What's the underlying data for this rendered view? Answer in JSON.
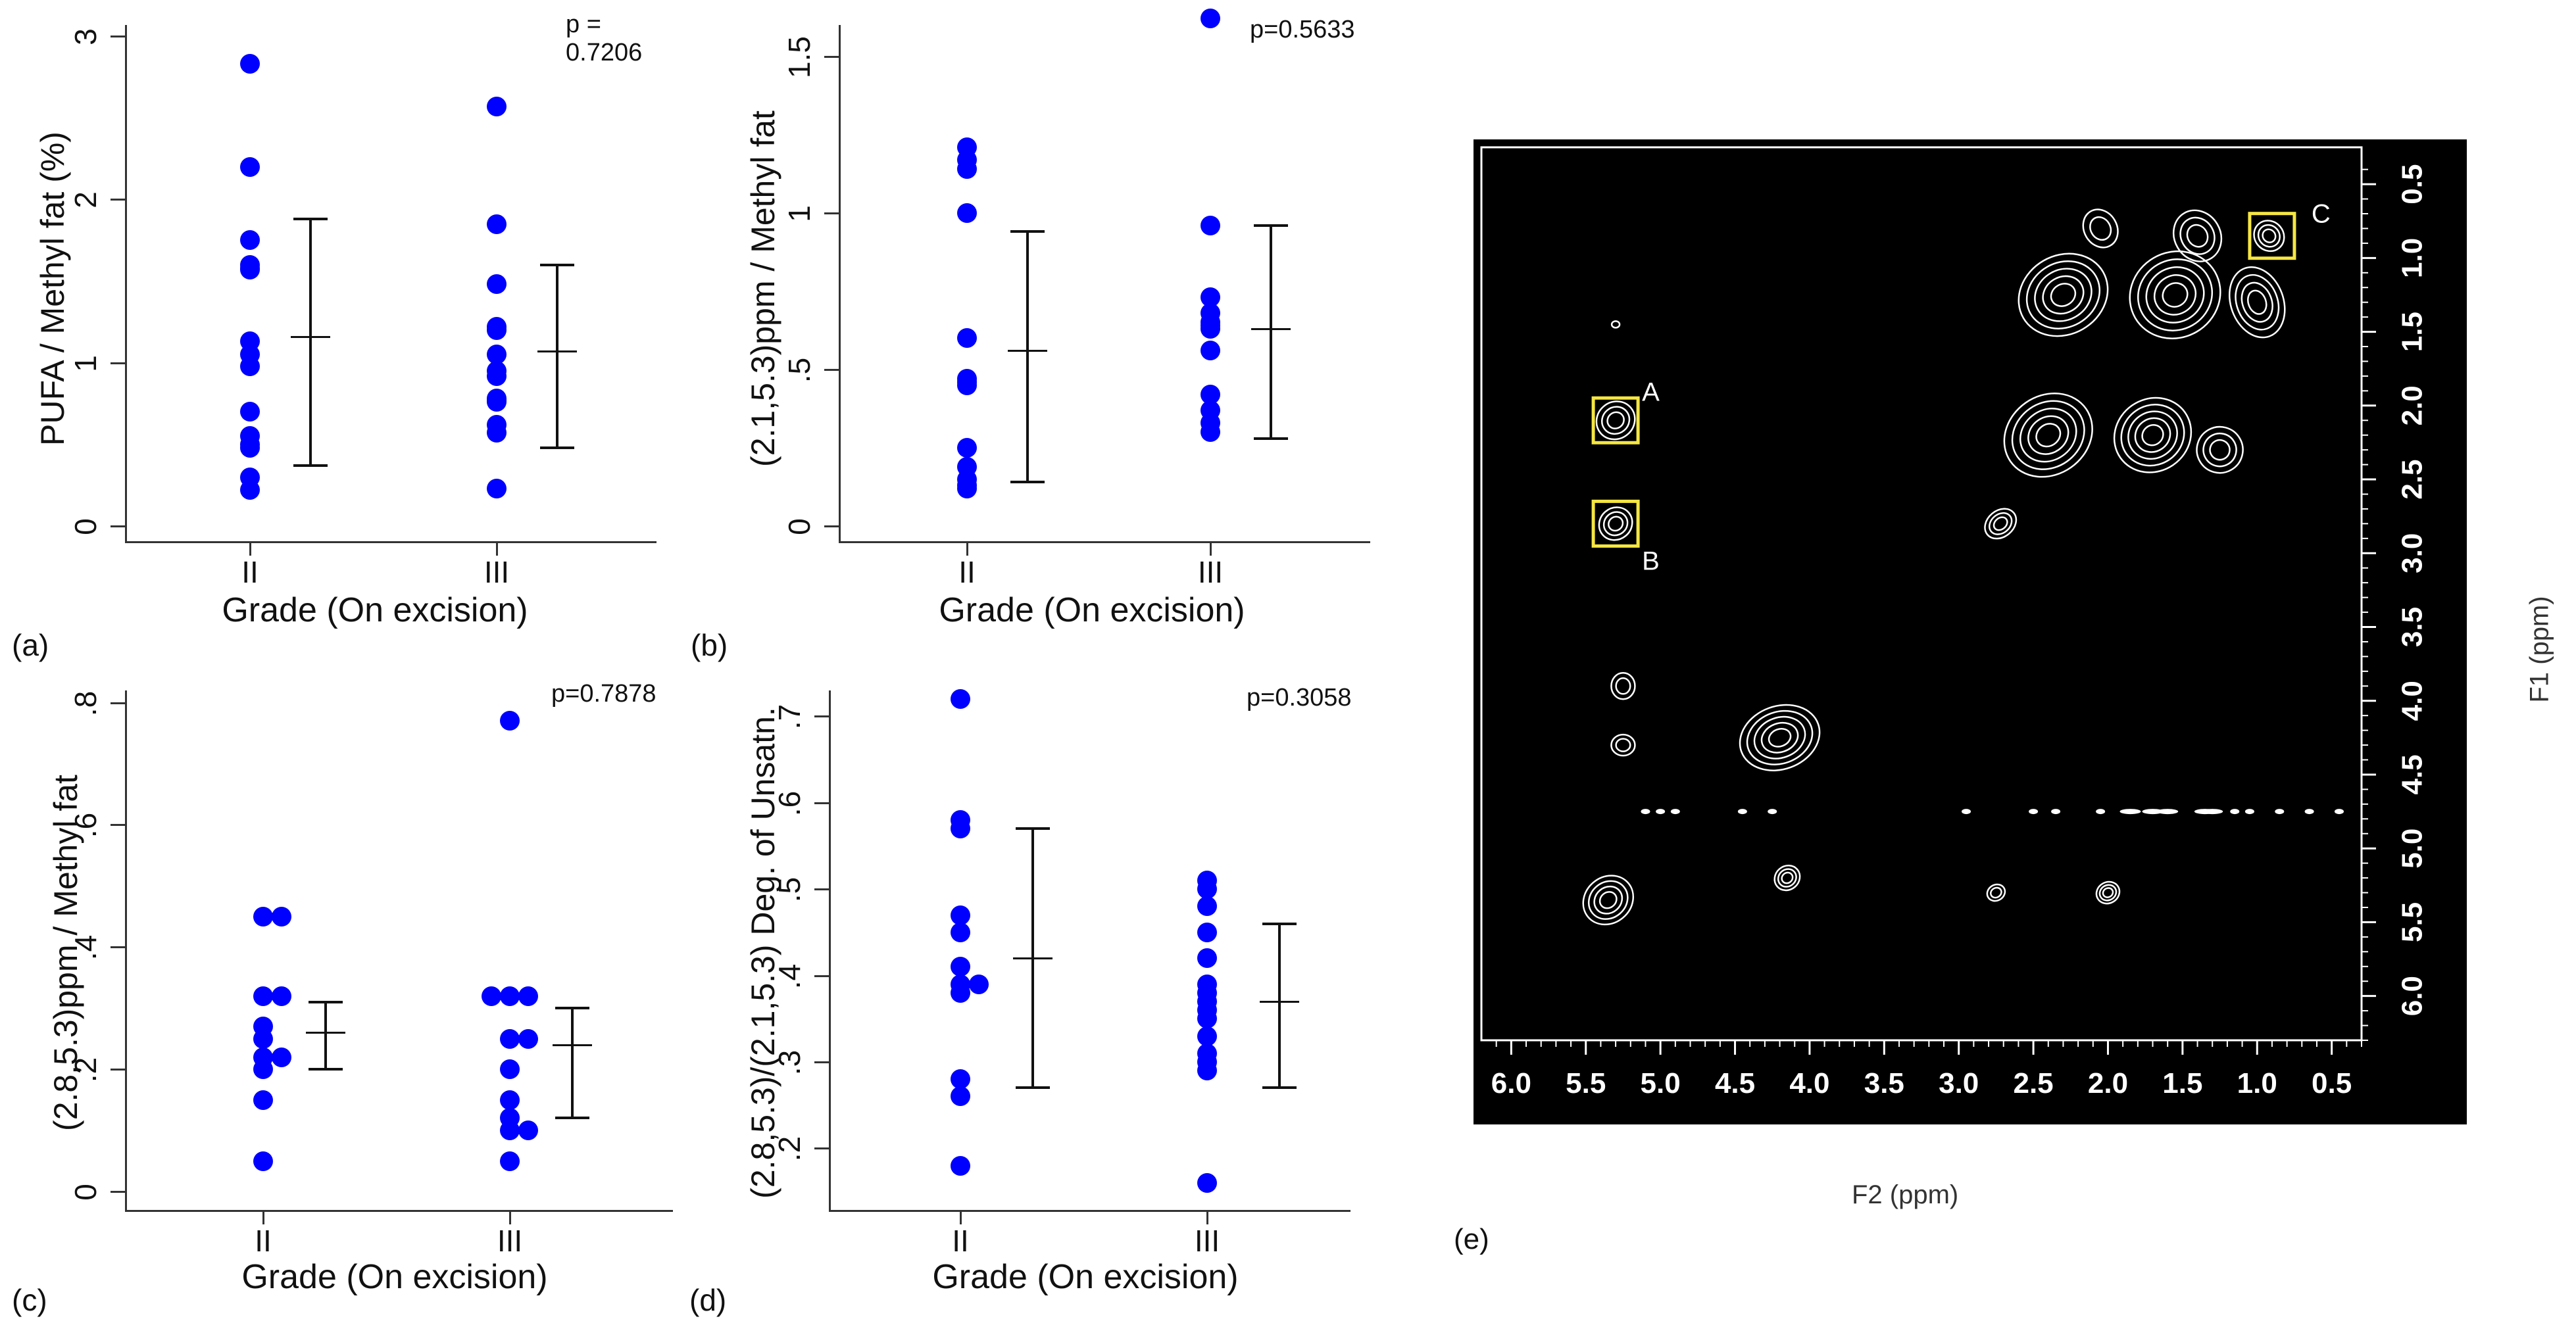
{
  "chart_data": [
    {
      "panel": "(a)",
      "type": "scatter",
      "xlabel": "Grade (On excision)",
      "ylabel": "PUFA / Methyl fat (%)",
      "ylim": [
        0,
        3
      ],
      "yticks": [
        "0",
        "1",
        "2",
        "3"
      ],
      "ytick_values": [
        0,
        1,
        2,
        3
      ],
      "categories": [
        "II",
        "III"
      ],
      "annotation": "p = 0.7206",
      "series": [
        {
          "name": "II",
          "values": [
            2.83,
            2.2,
            1.75,
            1.6,
            1.58,
            1.57,
            1.13,
            1.05,
            0.98,
            0.7,
            0.55,
            0.5,
            0.48,
            0.3,
            0.22
          ]
        },
        {
          "name": "III",
          "values": [
            2.57,
            1.85,
            1.48,
            1.22,
            1.2,
            1.05,
            0.95,
            0.92,
            0.78,
            0.77,
            0.76,
            0.62,
            0.57,
            0.23
          ]
        }
      ],
      "error_bars": [
        {
          "category": "II",
          "low": 0.37,
          "mean": 1.16,
          "high": 1.88
        },
        {
          "category": "III",
          "low": 0.48,
          "mean": 1.07,
          "high": 1.6
        }
      ]
    },
    {
      "panel": "(b)",
      "type": "scatter",
      "xlabel": "Grade (On excision)",
      "ylabel": "(2.1,5.3)ppm / Methyl fat",
      "ylim": [
        0,
        1.6
      ],
      "yticks": [
        "0",
        ".5",
        "1",
        "1.5"
      ],
      "ytick_values": [
        0,
        0.5,
        1,
        1.5
      ],
      "categories": [
        "II",
        "III"
      ],
      "annotation": "p=0.5633",
      "series": [
        {
          "name": "II",
          "values": [
            1.21,
            1.17,
            1.14,
            1.0,
            0.6,
            0.47,
            0.46,
            0.45,
            0.25,
            0.19,
            0.15,
            0.13,
            0.12
          ]
        },
        {
          "name": "III",
          "values": [
            1.62,
            0.96,
            0.73,
            0.68,
            0.65,
            0.64,
            0.63,
            0.56,
            0.42,
            0.37,
            0.33,
            0.3
          ]
        }
      ],
      "error_bars": [
        {
          "category": "II",
          "low": 0.14,
          "mean": 0.56,
          "high": 0.94
        },
        {
          "category": "III",
          "low": 0.28,
          "mean": 0.63,
          "high": 0.96
        }
      ]
    },
    {
      "panel": "(c)",
      "type": "scatter",
      "xlabel": "Grade (On excision)",
      "ylabel": "(2.8,5.3)ppm / Methyl fat",
      "ylim": [
        0,
        0.82
      ],
      "yticks": [
        "0",
        ".2",
        ".4",
        ".6",
        ".8"
      ],
      "ytick_values": [
        0,
        0.2,
        0.4,
        0.6,
        0.8
      ],
      "categories": [
        "II",
        "III"
      ],
      "annotation": "p=0.7878",
      "series": [
        {
          "name": "II",
          "values": [
            0.45,
            0.45,
            0.32,
            0.32,
            0.27,
            0.25,
            0.22,
            0.22,
            0.2,
            0.15,
            0.05
          ]
        },
        {
          "name": "III",
          "values": [
            0.77,
            0.32,
            0.32,
            0.32,
            0.25,
            0.25,
            0.2,
            0.15,
            0.12,
            0.1,
            0.1,
            0.05
          ]
        }
      ],
      "error_bars": [
        {
          "category": "II",
          "low": 0.2,
          "mean": 0.26,
          "high": 0.31
        },
        {
          "category": "III",
          "low": 0.12,
          "mean": 0.24,
          "high": 0.3
        }
      ]
    },
    {
      "panel": "(d)",
      "type": "scatter",
      "xlabel": "Grade (On excision)",
      "ylabel": "(2.8,5.3)/(2.1,5.3) Deg. of Unsatn.",
      "ylim": [
        0.15,
        0.73
      ],
      "yticks": [
        ".2",
        ".3",
        ".4",
        ".5",
        ".6",
        ".7"
      ],
      "ytick_values": [
        0.2,
        0.3,
        0.4,
        0.5,
        0.6,
        0.7
      ],
      "categories": [
        "II",
        "III"
      ],
      "annotation": "p=0.3058",
      "series": [
        {
          "name": "II",
          "values": [
            0.72,
            0.58,
            0.57,
            0.47,
            0.45,
            0.41,
            0.39,
            0.39,
            0.38,
            0.28,
            0.26,
            0.18
          ]
        },
        {
          "name": "III",
          "values": [
            0.51,
            0.5,
            0.48,
            0.45,
            0.42,
            0.39,
            0.38,
            0.37,
            0.36,
            0.35,
            0.33,
            0.31,
            0.3,
            0.29,
            0.16
          ]
        }
      ],
      "error_bars": [
        {
          "category": "II",
          "low": 0.27,
          "mean": 0.42,
          "high": 0.57
        },
        {
          "category": "III",
          "low": 0.27,
          "mean": 0.37,
          "high": 0.46
        }
      ]
    },
    {
      "panel": "(e)",
      "type": "heatmap",
      "description_kind": "2D NMR contour spectrum",
      "xlabel": "F2 (ppm)",
      "ylabel": "F1 (ppm)",
      "xticks": [
        "6.0",
        "5.5",
        "5.0",
        "4.5",
        "4.0",
        "3.5",
        "3.0",
        "2.5",
        "2.0",
        "1.5",
        "1.0",
        "0.5"
      ],
      "yticks": [
        "0.5",
        "1.0",
        "1.5",
        "2.0",
        "2.5",
        "3.0",
        "3.5",
        "4.0",
        "4.5",
        "5.0",
        "5.5",
        "6.0"
      ],
      "xlim": [
        6.0,
        0.3
      ],
      "ylim": [
        0.3,
        6.3
      ],
      "peak_labels": [
        {
          "label": "A",
          "f2": 5.3,
          "f1": 2.1
        },
        {
          "label": "B",
          "f2": 5.3,
          "f1": 2.8
        },
        {
          "label": "C",
          "f2": 0.9,
          "f1": 0.85
        }
      ]
    }
  ]
}
